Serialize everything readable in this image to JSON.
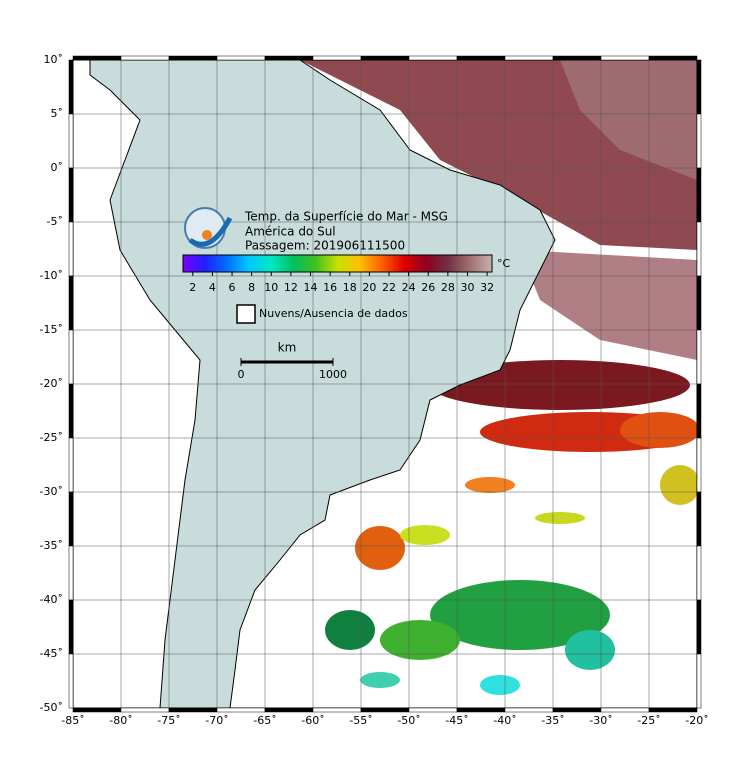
{
  "map": {
    "title": [
      "Temp. da Superfície do Mar - MSG",
      "América do Sul",
      "Passagem: 201906111500"
    ],
    "lonlim": [
      -85,
      -20
    ],
    "latlim": [
      -50,
      10
    ],
    "lon_ticks": [
      {
        "value": -85,
        "label": "-85˚"
      },
      {
        "value": -80,
        "label": "-80˚"
      },
      {
        "value": -75,
        "label": "-75˚"
      },
      {
        "value": -70,
        "label": "-70˚"
      },
      {
        "value": -65,
        "label": "-65˚"
      },
      {
        "value": -60,
        "label": "-60˚"
      },
      {
        "value": -55,
        "label": "-55˚"
      },
      {
        "value": -50,
        "label": "-50˚"
      },
      {
        "value": -45,
        "label": "-45˚"
      },
      {
        "value": -40,
        "label": "-40˚"
      },
      {
        "value": -35,
        "label": "-35˚"
      },
      {
        "value": -30,
        "label": "-30˚"
      },
      {
        "value": -25,
        "label": "-25˚"
      },
      {
        "value": -20,
        "label": "-20˚"
      }
    ],
    "lat_ticks": [
      {
        "value": 10,
        "label": "10˚"
      },
      {
        "value": 5,
        "label": "5˚"
      },
      {
        "value": 0,
        "label": "0˚"
      },
      {
        "value": -5,
        "label": "-5˚"
      },
      {
        "value": -10,
        "label": "-10˚"
      },
      {
        "value": -15,
        "label": "-15˚"
      },
      {
        "value": -20,
        "label": "-20˚"
      },
      {
        "value": -25,
        "label": "-25˚"
      },
      {
        "value": -30,
        "label": "-30˚"
      },
      {
        "value": -35,
        "label": "-35˚"
      },
      {
        "value": -40,
        "label": "-40˚"
      },
      {
        "value": -45,
        "label": "-45˚"
      },
      {
        "value": -50,
        "label": "-50˚"
      }
    ],
    "colorbar": {
      "range": [
        1,
        32.5
      ],
      "ticks": [
        2,
        4,
        6,
        8,
        10,
        12,
        14,
        16,
        18,
        20,
        22,
        24,
        26,
        28,
        30,
        32
      ],
      "unit": "°C",
      "colors": [
        "#7a00ff",
        "#2020ff",
        "#0070ff",
        "#00c8ff",
        "#00e8c0",
        "#00c060",
        "#40c020",
        "#c8e000",
        "#ffc000",
        "#ff6000",
        "#e00000",
        "#900020",
        "#703040",
        "#a07070",
        "#c8b0b0"
      ]
    },
    "legend": "Nuvens/Ausencia de dados",
    "scale": {
      "unit": "km",
      "ticks": [
        0,
        1000
      ]
    }
  }
}
